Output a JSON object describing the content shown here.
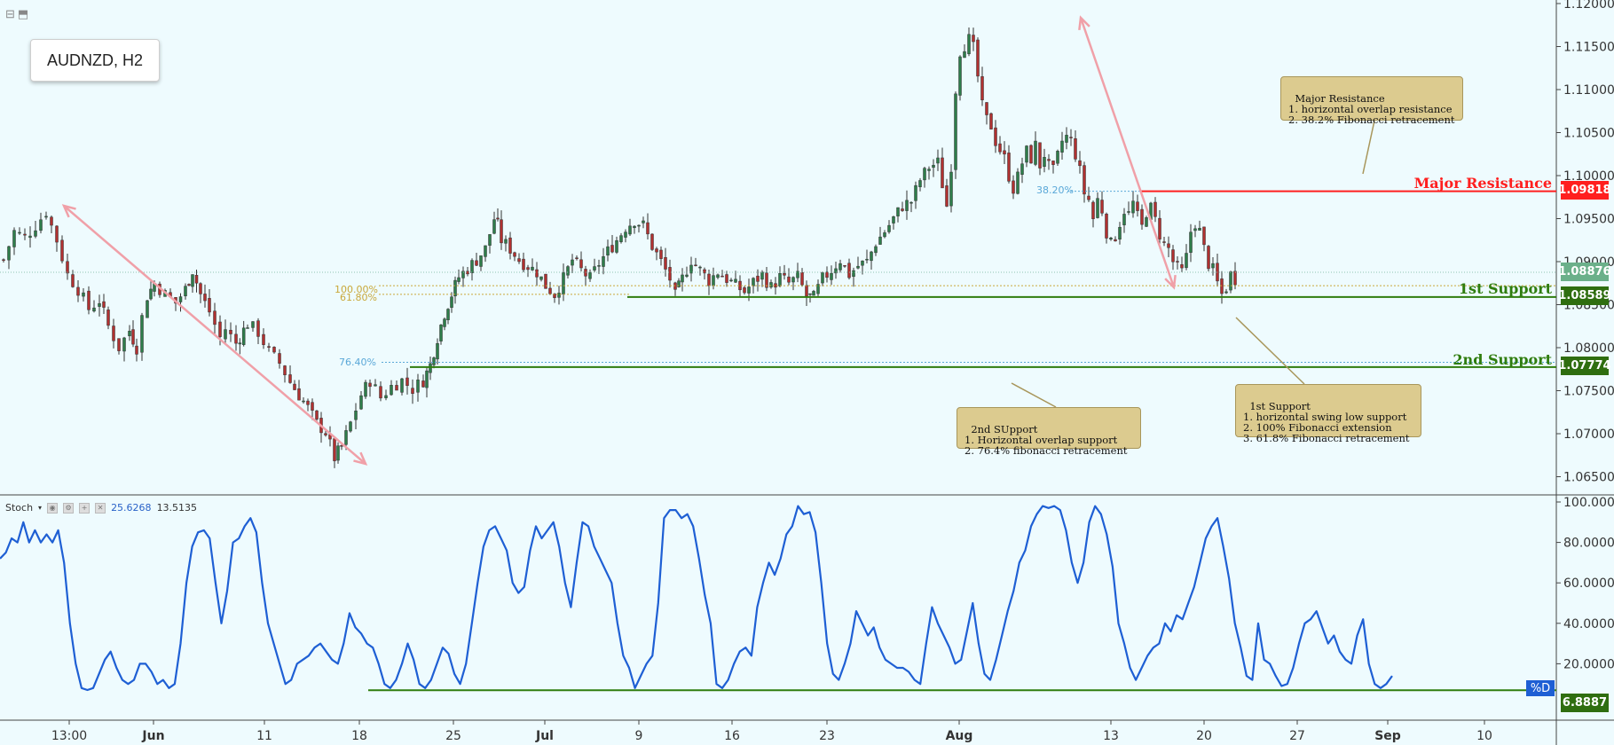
{
  "symbol_title": "AUDNZD, H2",
  "colors": {
    "background": "#eefbfe",
    "major_resistance": "#ff1f1f",
    "support": "#2f7d0e",
    "candle_up": "#2e7d4a",
    "candle_down": "#b03030",
    "stoch_line": "#1e5fd4",
    "arrow": "#f0a0a8",
    "fib": "#c9a83a"
  },
  "icons": [
    "collapse-icon",
    "maximize-icon",
    "settings-icon",
    "eye-icon",
    "close-icon"
  ],
  "levels": {
    "major_resistance": {
      "label": "Major Resistance",
      "price": "1.09818"
    },
    "first_support": {
      "label": "1st Support",
      "price": "1.08589"
    },
    "second_support": {
      "label": "2nd Support",
      "price": "1.07774"
    },
    "current_price": "1.08876"
  },
  "fib_labels": {
    "f382": "38.20%",
    "f100": "100.00%",
    "f618": "61.80%",
    "f764": "76.40%"
  },
  "notes": {
    "major_resistance": "Major Resistance\n1. horizontal overlap resistance\n2. 38.2% Fibonacci retracement",
    "first_support": "1st Support\n1. horizontal swing low support\n2. 100% Fibonacci extension\n3. 61.8% Fibonacci retracement",
    "second_support": "2nd SUpport\n1. Horizontal overlap support\n2. 76.4% fibonacci retracement"
  },
  "stoch": {
    "name": "Stoch",
    "k_value": "25.6268",
    "d_value": "13.5135",
    "d_label": "%D",
    "support_level": "6.8887"
  },
  "chart_data": [
    {
      "type": "candlestick",
      "title": "AUDNZD, H2",
      "x_tick_labels": [
        "13:00",
        "Jun",
        "11",
        "18",
        "25",
        "Jul",
        "9",
        "16",
        "23",
        "Aug",
        "13",
        "20",
        "27",
        "Sep",
        "10"
      ],
      "y_tick_labels": [
        "1.12000",
        "1.11500",
        "1.11000",
        "1.10500",
        "1.10000",
        "1.09500",
        "1.09000",
        "1.08500",
        "1.08000",
        "1.07500",
        "1.07000",
        "1.06500"
      ],
      "ylim": [
        1.0625,
        1.12
      ],
      "close_path": [
        [
          0,
          1.0902
        ],
        [
          12,
          1.0935
        ],
        [
          24,
          1.0928
        ],
        [
          36,
          1.0942
        ],
        [
          48,
          1.0958
        ],
        [
          60,
          1.0925
        ],
        [
          72,
          1.0885
        ],
        [
          84,
          1.0868
        ],
        [
          96,
          1.0845
        ],
        [
          108,
          1.0855
        ],
        [
          118,
          1.0825
        ],
        [
          130,
          1.08
        ],
        [
          142,
          1.082
        ],
        [
          150,
          1.08
        ],
        [
          156,
          1.0835
        ],
        [
          162,
          1.086
        ],
        [
          170,
          1.0875
        ],
        [
          182,
          1.0862
        ],
        [
          194,
          1.0852
        ],
        [
          205,
          1.0868
        ],
        [
          213,
          1.089
        ],
        [
          222,
          1.0862
        ],
        [
          232,
          1.0842
        ],
        [
          244,
          1.0812
        ],
        [
          250,
          1.0822
        ],
        [
          262,
          1.0805
        ],
        [
          275,
          1.0828
        ],
        [
          287,
          1.0818
        ],
        [
          299,
          1.0795
        ],
        [
          311,
          1.0782
        ],
        [
          323,
          1.076
        ],
        [
          333,
          1.0745
        ],
        [
          343,
          1.073
        ],
        [
          353,
          1.0712
        ],
        [
          363,
          1.0702
        ],
        [
          373,
          1.0672
        ],
        [
          381,
          1.0685
        ],
        [
          391,
          1.0712
        ],
        [
          403,
          1.0745
        ],
        [
          413,
          1.0762
        ],
        [
          425,
          1.0742
        ],
        [
          437,
          1.0755
        ],
        [
          449,
          1.0762
        ],
        [
          461,
          1.0752
        ],
        [
          473,
          1.0762
        ],
        [
          481,
          1.078
        ],
        [
          489,
          1.0812
        ],
        [
          497,
          1.084
        ],
        [
          505,
          1.0862
        ],
        [
          513,
          1.0882
        ],
        [
          523,
          1.0892
        ],
        [
          533,
          1.0902
        ],
        [
          543,
          1.0915
        ],
        [
          553,
          1.095
        ],
        [
          557,
          1.0942
        ],
        [
          561,
          1.0925
        ],
        [
          571,
          1.0915
        ],
        [
          581,
          1.0902
        ],
        [
          591,
          1.0895
        ],
        [
          601,
          1.0888
        ],
        [
          611,
          1.0872
        ],
        [
          621,
          1.0862
        ],
        [
          631,
          1.088
        ],
        [
          641,
          1.0902
        ],
        [
          651,
          1.089
        ],
        [
          661,
          1.088
        ],
        [
          671,
          1.0898
        ],
        [
          681,
          1.0912
        ],
        [
          691,
          1.0925
        ],
        [
          701,
          1.094
        ],
        [
          711,
          1.0948
        ],
        [
          721,
          1.0942
        ],
        [
          731,
          1.0918
        ],
        [
          741,
          1.09
        ],
        [
          751,
          1.088
        ],
        [
          757,
          1.086
        ],
        [
          765,
          1.088
        ],
        [
          775,
          1.0902
        ],
        [
          785,
          1.089
        ],
        [
          795,
          1.0878
        ],
        [
          805,
          1.0888
        ],
        [
          815,
          1.088
        ],
        [
          825,
          1.0872
        ],
        [
          835,
          1.0865
        ],
        [
          845,
          1.0876
        ],
        [
          855,
          1.0885
        ],
        [
          865,
          1.087
        ],
        [
          875,
          1.0882
        ],
        [
          885,
          1.0875
        ],
        [
          895,
          1.0882
        ],
        [
          905,
          1.086
        ],
        [
          913,
          1.0858
        ],
        [
          923,
          1.088
        ],
        [
          933,
          1.089
        ],
        [
          943,
          1.0902
        ],
        [
          953,
          1.0885
        ],
        [
          963,
          1.0895
        ],
        [
          973,
          1.09
        ],
        [
          983,
          1.0922
        ],
        [
          993,
          1.0935
        ],
        [
          1003,
          1.095
        ],
        [
          1013,
          1.0965
        ],
        [
          1023,
          1.097
        ],
        [
          1033,
          1.0995
        ],
        [
          1043,
          1.101
        ],
        [
          1053,
          1.1015
        ],
        [
          1058,
          1.099
        ],
        [
          1063,
          1.0965
        ],
        [
          1068,
          1.1012
        ],
        [
          1073,
          1.11
        ],
        [
          1078,
          1.1145
        ],
        [
          1083,
          1.1152
        ],
        [
          1088,
          1.1158
        ],
        [
          1093,
          1.1148
        ],
        [
          1098,
          1.1115
        ],
        [
          1103,
          1.108
        ],
        [
          1108,
          1.1065
        ],
        [
          1113,
          1.1058
        ],
        [
          1118,
          1.104
        ],
        [
          1123,
          1.103
        ],
        [
          1128,
          1.102
        ],
        [
          1133,
          1.1
        ],
        [
          1138,
          1.0985
        ],
        [
          1143,
          1.0998
        ],
        [
          1148,
          1.1015
        ],
        [
          1153,
          1.1028
        ],
        [
          1158,
          1.102
        ],
        [
          1163,
          1.1035
        ],
        [
          1168,
          1.1012
        ],
        [
          1173,
          1.1025
        ],
        [
          1178,
          1.101
        ],
        [
          1183,
          1.1005
        ],
        [
          1188,
          1.1022
        ],
        [
          1193,
          1.104
        ],
        [
          1198,
          1.1045
        ],
        [
          1203,
          1.104
        ],
        [
          1208,
          1.1025
        ],
        [
          1213,
          1.1005
        ],
        [
          1218,
          1.098
        ],
        [
          1223,
          1.0972
        ],
        [
          1228,
          1.095
        ],
        [
          1233,
          1.0972
        ],
        [
          1238,
          1.096
        ],
        [
          1243,
          1.0935
        ],
        [
          1248,
          1.092
        ],
        [
          1253,
          1.093
        ],
        [
          1258,
          1.0945
        ],
        [
          1263,
          1.096
        ],
        [
          1268,
          1.0955
        ],
        [
          1273,
          1.0968
        ],
        [
          1278,
          1.0952
        ],
        [
          1283,
          1.094
        ],
        [
          1288,
          1.0958
        ],
        [
          1293,
          1.0962
        ],
        [
          1298,
          1.0948
        ],
        [
          1303,
          1.0932
        ],
        [
          1308,
          1.092
        ],
        [
          1313,
          1.0915
        ],
        [
          1318,
          1.09
        ],
        [
          1323,
          1.0892
        ],
        [
          1328,
          1.0888
        ],
        [
          1333,
          1.0905
        ],
        [
          1338,
          1.0935
        ],
        [
          1343,
          1.0945
        ],
        [
          1348,
          1.0935
        ],
        [
          1353,
          1.0915
        ],
        [
          1358,
          1.0898
        ],
        [
          1363,
          1.089
        ],
        [
          1368,
          1.0875
        ],
        [
          1373,
          1.0862
        ],
        [
          1378,
          1.087
        ],
        [
          1383,
          1.0885
        ],
        [
          1388,
          1.088
        ]
      ]
    },
    {
      "type": "line",
      "title": "Stoch",
      "series": [
        {
          "name": "%D",
          "values": [
            72,
            75,
            82,
            80,
            90,
            80,
            86,
            80,
            84,
            80,
            86,
            70,
            40,
            20,
            8,
            7,
            8,
            15,
            22,
            26,
            18,
            12,
            10,
            12,
            20,
            20,
            16,
            10,
            12,
            8,
            10,
            30,
            60,
            78,
            85,
            86,
            82,
            60,
            40,
            56,
            80,
            82,
            88,
            92,
            85,
            60,
            40,
            30,
            20,
            10,
            12,
            20,
            22,
            24,
            28,
            30,
            26,
            22,
            20,
            30,
            45,
            38,
            35,
            30,
            28,
            20,
            10,
            8,
            12,
            20,
            30,
            22,
            10,
            8,
            12,
            20,
            28,
            25,
            15,
            10,
            20,
            40,
            60,
            78,
            86,
            88,
            82,
            76,
            60,
            55,
            58,
            76,
            88,
            82,
            86,
            90,
            78,
            60,
            48,
            70,
            90,
            88,
            78,
            72,
            66,
            60,
            40,
            24,
            18,
            8,
            14,
            20,
            24,
            50,
            92,
            96,
            96,
            92,
            94,
            88,
            72,
            54,
            40,
            10,
            8,
            12,
            20,
            26,
            28,
            24,
            48,
            60,
            70,
            64,
            72,
            84,
            88,
            98,
            94,
            95,
            85,
            60,
            30,
            15,
            12,
            20,
            30,
            46,
            40,
            34,
            38,
            28,
            22,
            20,
            18,
            18,
            16,
            12,
            10,
            30,
            48,
            40,
            34,
            28,
            20,
            22,
            36,
            50,
            30,
            15,
            12,
            22,
            34,
            46,
            56,
            70,
            76,
            88,
            94,
            98,
            97,
            98,
            96,
            86,
            70,
            60,
            70,
            90,
            98,
            94,
            84,
            68,
            40,
            30,
            18,
            12,
            18,
            24,
            28,
            30,
            40,
            36,
            44,
            42,
            50,
            58,
            70,
            82,
            88,
            92,
            78,
            62,
            40,
            28,
            14,
            12,
            40,
            22,
            20,
            14,
            9,
            10,
            18,
            30,
            40,
            42,
            46,
            38,
            30,
            34,
            26,
            22,
            20,
            34,
            42,
            20,
            10,
            8,
            10,
            14
          ]
        }
      ],
      "x_tick_labels": [
        "13:00",
        "Jun",
        "11",
        "18",
        "25",
        "Jul",
        "9",
        "16",
        "23",
        "Aug",
        "13",
        "20",
        "27",
        "Sep",
        "10"
      ],
      "y_tick_labels": [
        "100.0000",
        "80.0000",
        "60.0000",
        "40.0000",
        "20.0000"
      ],
      "ylim": [
        0,
        100
      ]
    }
  ]
}
